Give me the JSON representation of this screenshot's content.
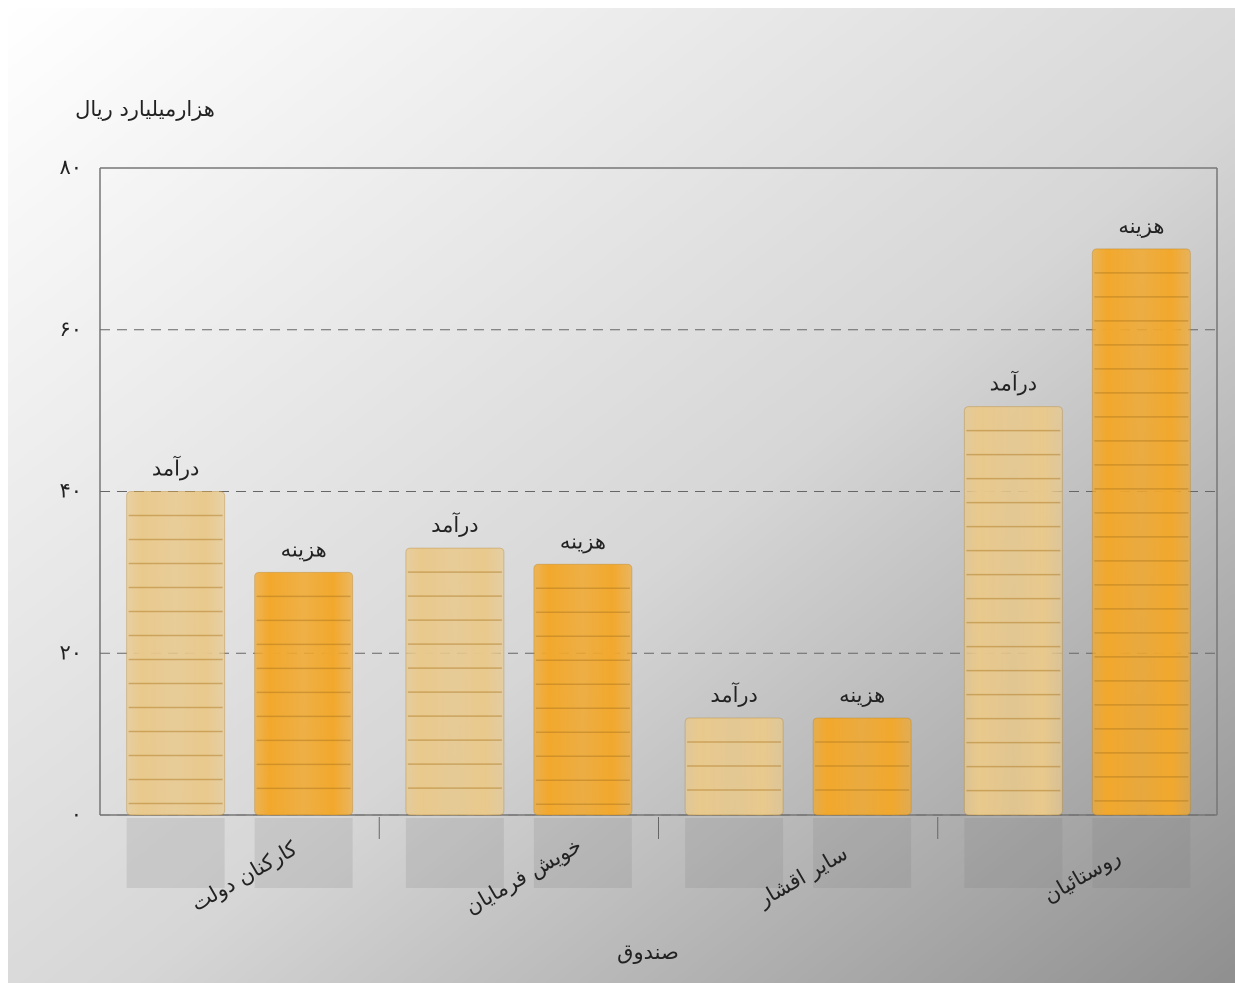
{
  "chart_data": {
    "type": "bar",
    "y_label": "هزارمیلیارد ریال",
    "x_label": "صندوق",
    "categories": [
      "کارکنان دولت",
      "خویش فرمایان",
      "سایر اقشار",
      "روستائیان"
    ],
    "series": [
      {
        "name": "درآمد",
        "color": "#e9c98c",
        "values": [
          40,
          33,
          12,
          50.5
        ]
      },
      {
        "name": "هزینه",
        "color": "#f2a82c",
        "values": [
          30,
          31,
          12,
          70
        ]
      }
    ],
    "ylim": [
      0,
      80
    ],
    "yticks": [
      {
        "value": 0,
        "label": "۰"
      },
      {
        "value": 20,
        "label": "۲۰"
      },
      {
        "value": 40,
        "label": "۴۰"
      },
      {
        "value": 60,
        "label": "۶۰"
      },
      {
        "value": 80,
        "label": "۸۰"
      }
    ],
    "grid": true
  }
}
